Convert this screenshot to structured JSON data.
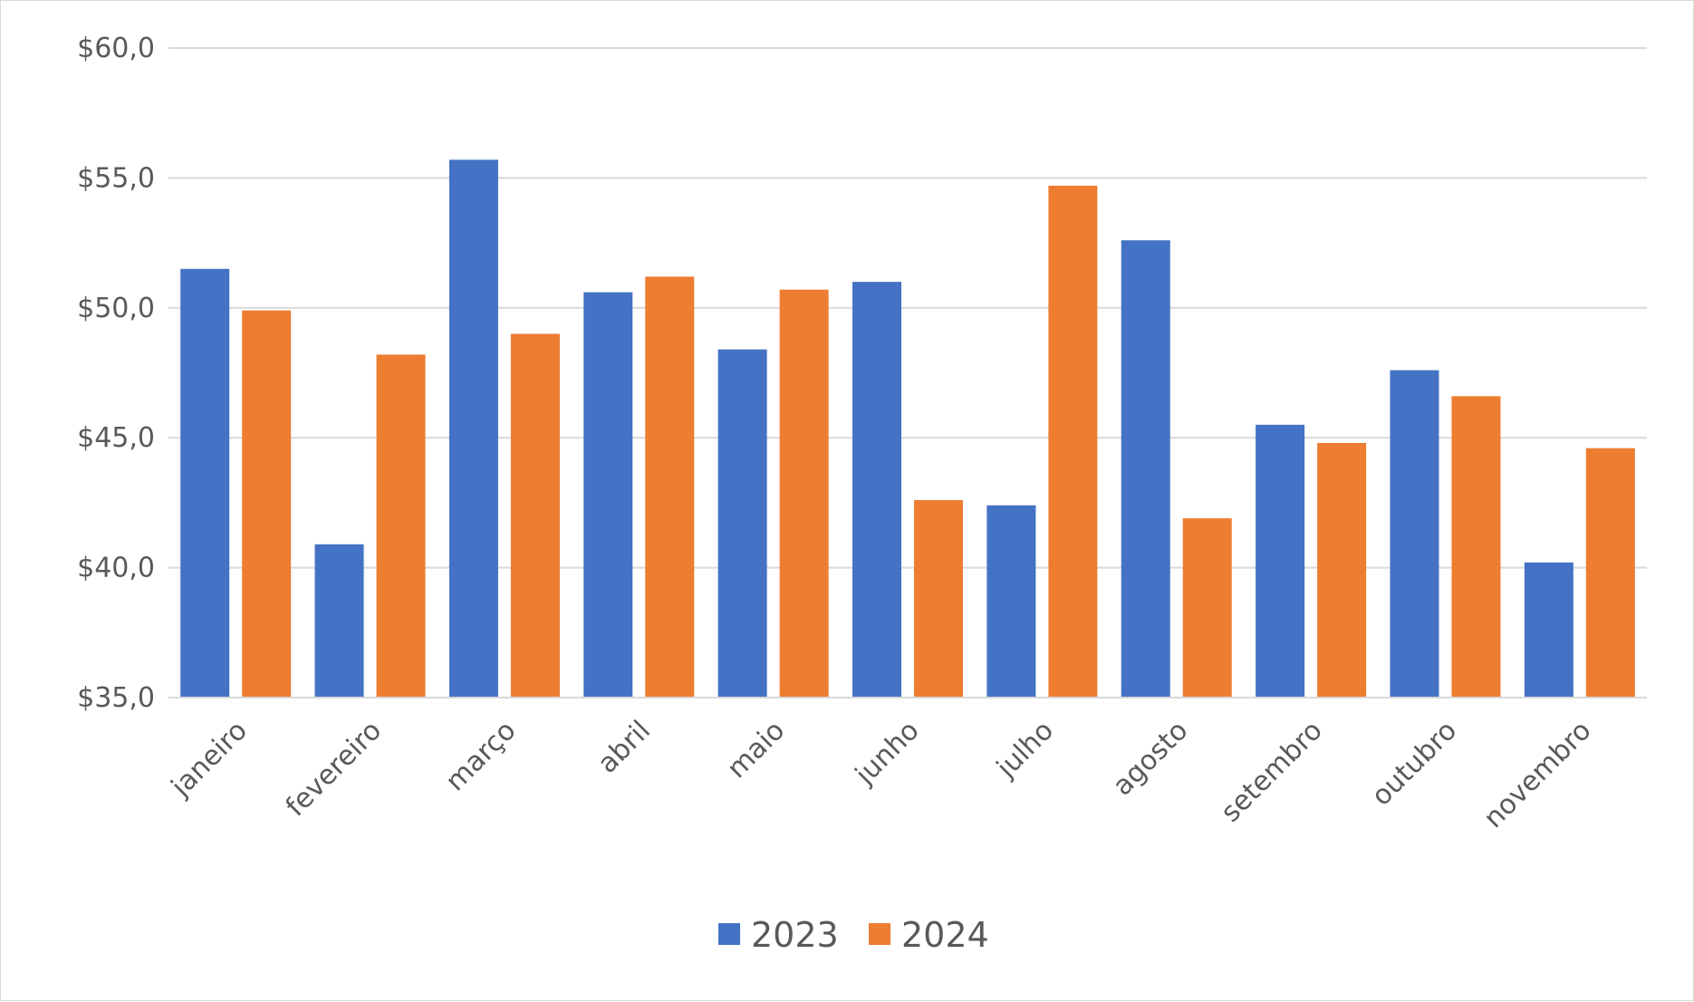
{
  "chart_data": {
    "type": "bar",
    "categories": [
      "janeiro",
      "fevereiro",
      "março",
      "abril",
      "maio",
      "junho",
      "julho",
      "agosto",
      "setembro",
      "outubro",
      "novembro"
    ],
    "series": [
      {
        "name": "2023",
        "color": "#4472c4",
        "values": [
          51.5,
          40.9,
          55.7,
          50.6,
          48.4,
          51.0,
          42.4,
          52.6,
          45.5,
          47.6,
          40.2
        ]
      },
      {
        "name": "2024",
        "color": "#ed7d31",
        "values": [
          49.9,
          48.2,
          49.0,
          51.2,
          50.7,
          42.6,
          54.7,
          41.9,
          44.8,
          46.6,
          44.6
        ]
      }
    ],
    "y_ticks": [
      "$35,0",
      "$40,0",
      "$45,0",
      "$50,0",
      "$55,0",
      "$60,0"
    ],
    "ylim": [
      35,
      60
    ],
    "grid": true,
    "legend_position": "bottom"
  }
}
